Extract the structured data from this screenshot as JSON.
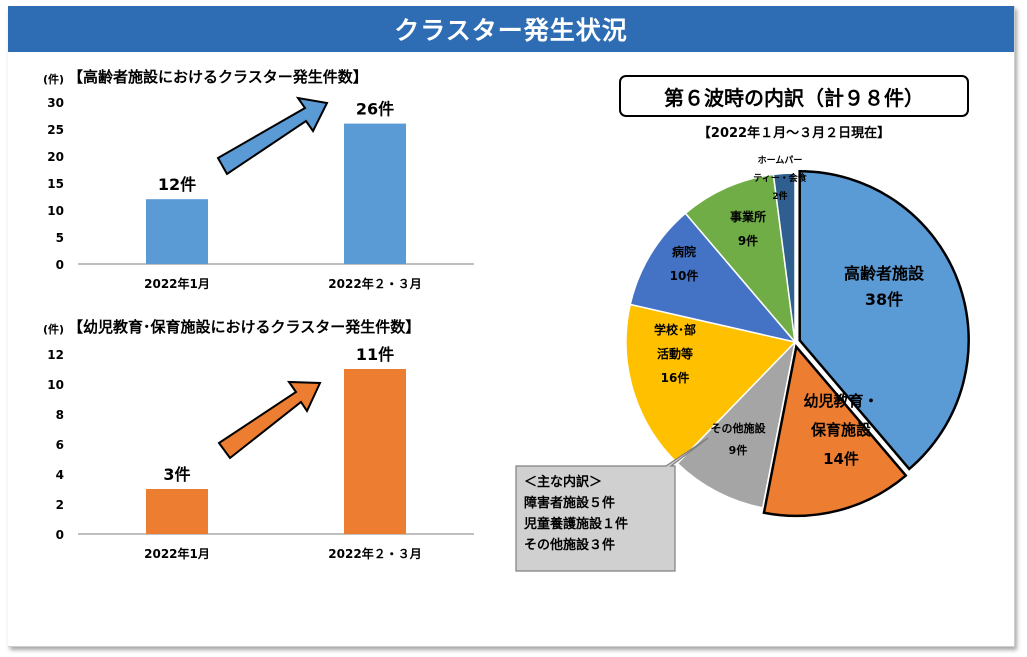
{
  "title": "クラスター発生状況",
  "colors": {
    "title_bg": "#2e6db4",
    "bar_elderly": "#5b9bd5",
    "bar_child": "#ed7d31",
    "arrow_blue": "#5b9bd5",
    "arrow_orange": "#ed7d31"
  },
  "chart_data": [
    {
      "type": "bar",
      "title": "【高齢者施設におけるクラスター発生件数】",
      "ylabel": "(件)",
      "categories": [
        "2022年1月",
        "2022年２・３月"
      ],
      "values": [
        12,
        26
      ],
      "value_labels": [
        "12件",
        "26件"
      ],
      "ylim": [
        0,
        30
      ],
      "yticks": [
        0,
        5,
        10,
        15,
        20,
        25,
        30
      ],
      "color": "#5b9bd5"
    },
    {
      "type": "bar",
      "title": "【幼児教育･保育施設におけるクラスター発生件数】",
      "ylabel": "(件)",
      "categories": [
        "2022年1月",
        "2022年２・３月"
      ],
      "values": [
        3,
        11
      ],
      "value_labels": [
        "3件",
        "11件"
      ],
      "ylim": [
        0,
        12
      ],
      "yticks": [
        0,
        2,
        4,
        6,
        8,
        10,
        12
      ],
      "color": "#ed7d31"
    },
    {
      "type": "pie",
      "title": "第６波時の内訳（計９８件）",
      "subtitle": "【2022年１月～３月２日現在】",
      "slices": [
        {
          "label": [
            "高齢者施設",
            "38件"
          ],
          "value": 38,
          "color": "#5b9bd5"
        },
        {
          "label": [
            "幼児教育・",
            "保育施設",
            "14件"
          ],
          "value": 14,
          "color": "#ed7d31"
        },
        {
          "label": [
            "その他施設",
            "9件"
          ],
          "value": 9,
          "color": "#a5a5a5"
        },
        {
          "label": [
            "学校･部",
            "活動等",
            "16件"
          ],
          "value": 16,
          "color": "#ffc000"
        },
        {
          "label": [
            "病院",
            "10件"
          ],
          "value": 10,
          "color": "#4472c4"
        },
        {
          "label": [
            "事業所",
            "9件"
          ],
          "value": 9,
          "color": "#70ad47"
        },
        {
          "label": [
            "ホームパー",
            "ティー・会食",
            "2件"
          ],
          "value": 2,
          "color": "#2e5f8f"
        }
      ]
    }
  ],
  "callout": {
    "lines": [
      "＜主な内訳＞",
      "障害者施設５件",
      "児童養護施設１件",
      "その他施設３件"
    ]
  }
}
